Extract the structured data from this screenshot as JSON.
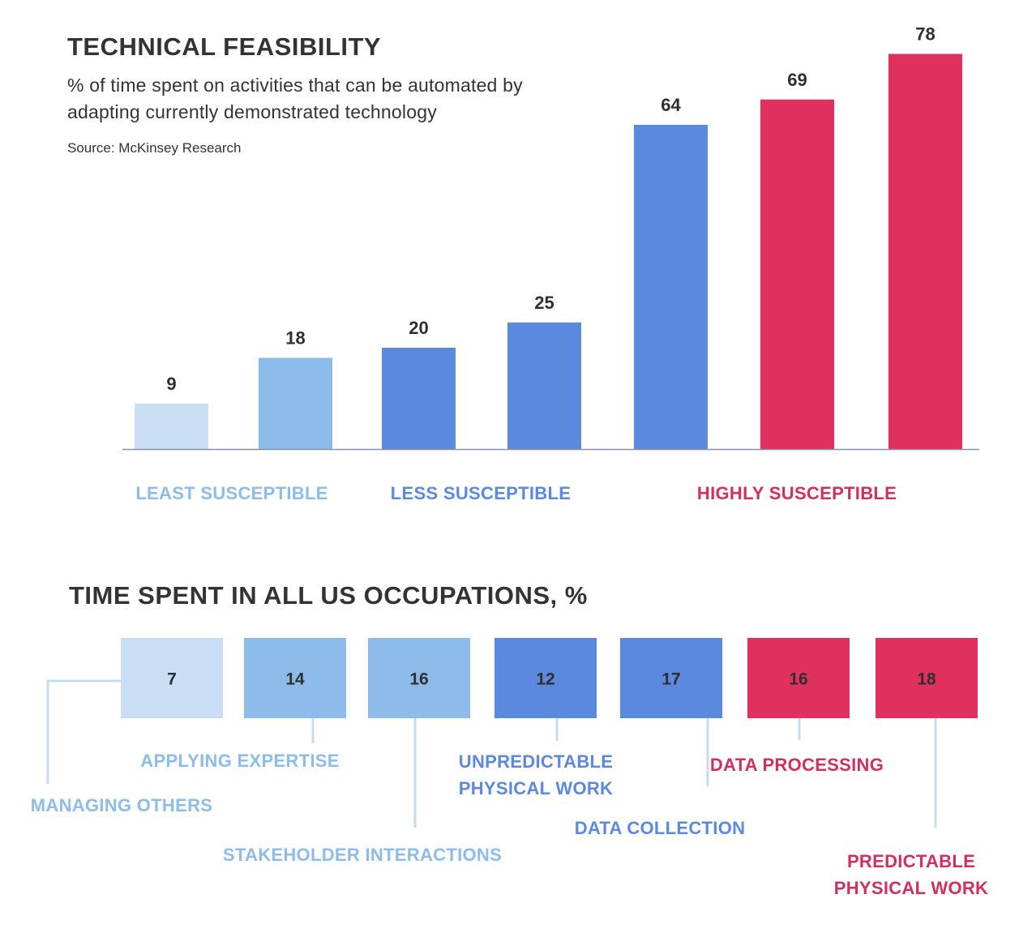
{
  "chart_data": [
    {
      "type": "bar",
      "title": "TECHNICAL FEASIBILITY",
      "subtitle": [
        "% of time spent on activities that can be automated by",
        "adapting currently demonstrated technology"
      ],
      "source": "Source: McKinsey Research",
      "values": [
        9,
        18,
        20,
        25,
        64,
        69,
        78
      ],
      "ylim": [
        0,
        80
      ],
      "bar_colors": [
        "#c9ddf4",
        "#8dbcea",
        "#5b89de",
        "#5b89de",
        "#5b89de",
        "#e0305e",
        "#e0305e"
      ],
      "groups": [
        {
          "label": "LEAST SUSCEPTIBLE",
          "color": "#8dbcea"
        },
        {
          "label": "LESS SUSCEPTIBLE",
          "color": "#5b89de"
        },
        {
          "label": "HIGHLY SUSCEPTIBLE",
          "color": "#d0305e"
        }
      ],
      "grid": false
    },
    {
      "type": "table",
      "title": "TIME SPENT IN ALL US OCCUPATIONS, %",
      "items": [
        {
          "label": [
            "MANAGING OTHERS"
          ],
          "value": 7,
          "color": "#c9ddf4",
          "label_color": "#8dbcea"
        },
        {
          "label": [
            "APPLYING EXPERTISE"
          ],
          "value": 14,
          "color": "#8dbcea",
          "label_color": "#8dbcea"
        },
        {
          "label": [
            "STAKEHOLDER INTERACTIONS"
          ],
          "value": 16,
          "color": "#8dbcea",
          "label_color": "#8dbcea"
        },
        {
          "label": [
            "UNPREDICTABLE",
            "PHYSICAL WORK"
          ],
          "value": 12,
          "color": "#5b89de",
          "label_color": "#5b89de"
        },
        {
          "label": [
            "DATA COLLECTION"
          ],
          "value": 17,
          "color": "#5b89de",
          "label_color": "#5b89de"
        },
        {
          "label": [
            "DATA PROCESSING"
          ],
          "value": 16,
          "color": "#e0305e",
          "label_color": "#d0305e"
        },
        {
          "label": [
            "PREDICTABLE",
            "PHYSICAL WORK"
          ],
          "value": 18,
          "color": "#e0305e",
          "label_color": "#d0305e"
        }
      ]
    }
  ]
}
